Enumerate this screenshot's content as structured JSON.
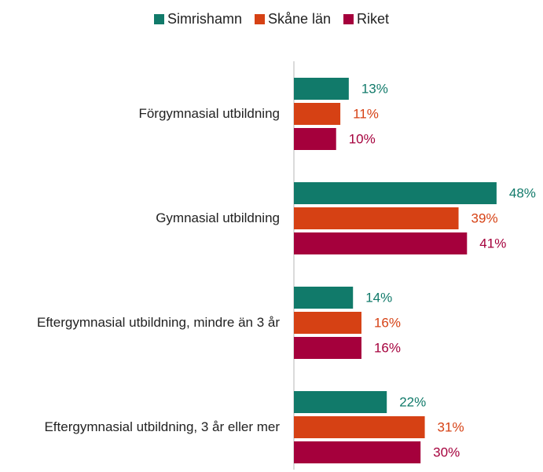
{
  "chart_data": {
    "type": "bar",
    "orientation": "horizontal",
    "categories": [
      "Förgymnasial utbildning",
      "Gymnasial utbildning",
      "Eftergymnasial utbildning, mindre än 3 år",
      "Eftergymnasial utbildning, 3 år eller mer"
    ],
    "series": [
      {
        "name": "Simrishamn",
        "color": "#117a6a",
        "values": [
          13,
          48,
          14,
          22
        ],
        "value_labels": [
          "13%",
          "48%",
          "14%",
          "22%"
        ]
      },
      {
        "name": "Skåne län",
        "color": "#d64114",
        "values": [
          11,
          39,
          16,
          31
        ],
        "value_labels": [
          "11%",
          "39%",
          "16%",
          "31%"
        ]
      },
      {
        "name": "Riket",
        "color": "#a5003c",
        "values": [
          10,
          41,
          16,
          30
        ],
        "value_labels": [
          "10%",
          "41%",
          "16%",
          "30%"
        ]
      }
    ],
    "xlim": [
      0,
      59
    ],
    "legend": "top"
  }
}
